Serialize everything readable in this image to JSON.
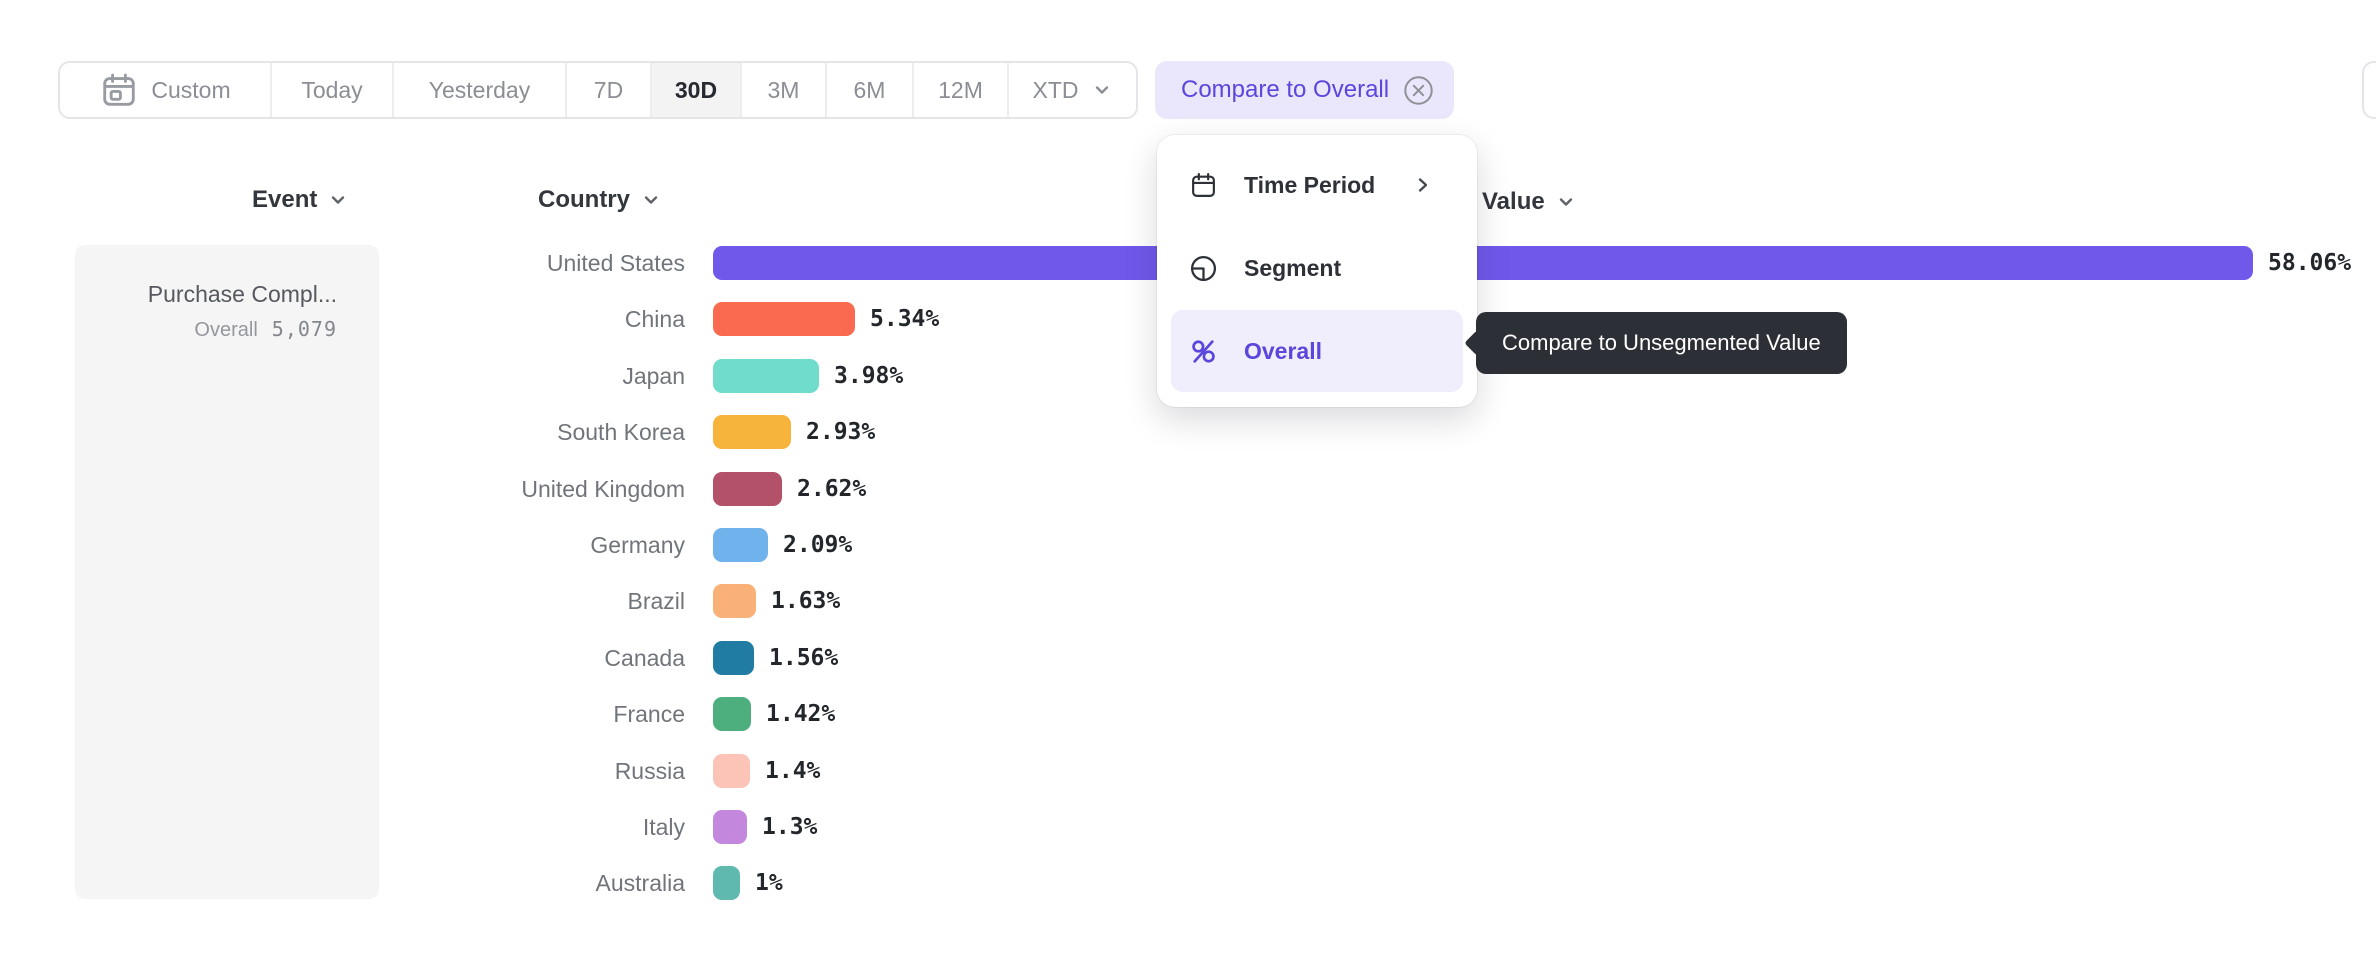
{
  "toolbar": {
    "items": [
      {
        "label": "Custom",
        "icon": "calendar-icon",
        "selected": false
      },
      {
        "label": "Today",
        "selected": false
      },
      {
        "label": "Yesterday",
        "selected": false
      },
      {
        "label": "7D",
        "selected": false
      },
      {
        "label": "30D",
        "selected": true
      },
      {
        "label": "3M",
        "selected": false
      },
      {
        "label": "6M",
        "selected": false
      },
      {
        "label": "12M",
        "selected": false
      },
      {
        "label": "XTD",
        "selected": false,
        "has_dropdown": true
      }
    ]
  },
  "compare_chip": {
    "label": "Compare to Overall",
    "close_icon": "circled-x-icon"
  },
  "dropdown_menu": {
    "items": [
      {
        "label": "Time Period",
        "icon": "calendar-icon",
        "has_submenu": true,
        "selected": false
      },
      {
        "label": "Segment",
        "icon": "segment-icon",
        "has_submenu": false,
        "selected": false
      },
      {
        "label": "Overall",
        "icon": "percent-icon",
        "has_submenu": false,
        "selected": true
      }
    ]
  },
  "tooltip": {
    "text": "Compare to Unsegmented Value"
  },
  "event_panel": {
    "header": "Event",
    "name": "Purchase Compl...",
    "overall_label": "Overall",
    "overall_value": "5,079"
  },
  "columns": {
    "event": "Event",
    "country": "Country",
    "value": "Value"
  },
  "chart_data": {
    "type": "bar",
    "orientation": "horizontal",
    "title": "",
    "xlabel": "",
    "ylabel": "Country",
    "categories": [
      "United States",
      "China",
      "Japan",
      "South Korea",
      "United Kingdom",
      "Germany",
      "Brazil",
      "Canada",
      "France",
      "Russia",
      "Italy",
      "Australia"
    ],
    "values": [
      58.06,
      5.34,
      3.98,
      2.93,
      2.62,
      2.09,
      1.63,
      1.56,
      1.42,
      1.4,
      1.3,
      1
    ],
    "value_labels": [
      "58.06%",
      "5.34%",
      "3.98%",
      "2.93%",
      "2.62%",
      "2.09%",
      "1.63%",
      "1.56%",
      "1.42%",
      "1.4%",
      "1.3%",
      "1%"
    ],
    "bar_colors": [
      "#7058EB",
      "#F96A50",
      "#70DCCC",
      "#F6B43C",
      "#B25168",
      "#70B2EC",
      "#FAB178",
      "#207CA2",
      "#4EAF7E",
      "#FCC4B6",
      "#C487DE",
      "#5FB9AE"
    ],
    "xlim": [
      0,
      58.06
    ],
    "grid": false,
    "legend": false
  },
  "colors": {
    "accent_purple": "#5A46DC",
    "chip_bg": "#EAE6FB",
    "menu_highlight_bg": "#F0EDFC",
    "tooltip_bg": "#2D2F36",
    "panel_bg": "#F5F5F6",
    "selected_range_bg": "#F3F3F4",
    "value_label_text": "#23262B"
  }
}
